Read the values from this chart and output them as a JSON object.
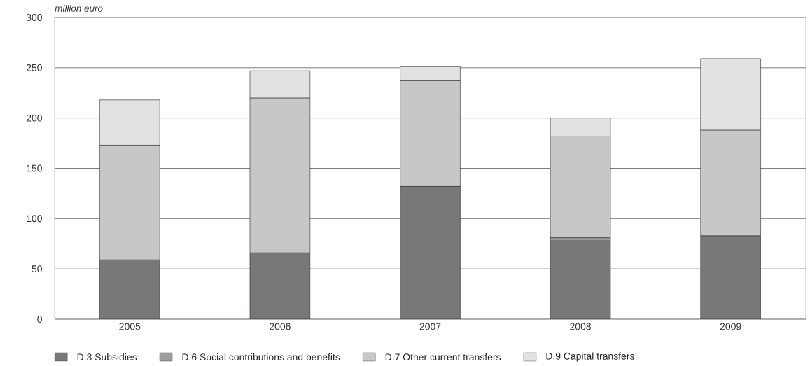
{
  "chart_data": {
    "type": "bar",
    "stacked": true,
    "ylabel": "million euro",
    "categories": [
      "2005",
      "2006",
      "2007",
      "2008",
      "2009"
    ],
    "series": [
      {
        "name": "D.3 Subsidies",
        "color": "#77787a",
        "values": [
          59,
          66,
          132,
          78,
          83
        ]
      },
      {
        "name": "D.6 Social contributions and benefits",
        "color": "#9c9d9f",
        "values": [
          null,
          null,
          null,
          3,
          null
        ]
      },
      {
        "name": "D.7 Other current transfers",
        "color": "#c6c7c9",
        "values": [
          114,
          154,
          105,
          101,
          105
        ]
      },
      {
        "name": "D.9 Capital transfers",
        "color": "#e1e2e4",
        "values": [
          45,
          27,
          14,
          18,
          71
        ]
      }
    ],
    "ylim": [
      0,
      300
    ],
    "yticks": [
      0,
      50,
      100,
      150,
      200,
      250,
      300
    ],
    "grid": "y",
    "legend": "bottom"
  }
}
